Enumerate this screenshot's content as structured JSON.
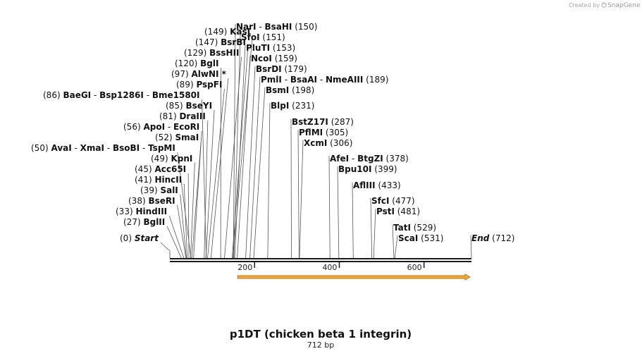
{
  "credit": {
    "prefix": "Created by",
    "brand": "SnapGene"
  },
  "map": {
    "name": "p1DT (chicken beta 1 integrin)",
    "length_label": "712 bp",
    "length_bp": 712,
    "ticks": [
      200,
      400,
      600
    ],
    "colors": {
      "backbone": "#1a1a1a",
      "feature_fill": "#f3a93a",
      "feature_stroke": "#c07a14",
      "cutline": "#555555"
    }
  },
  "chart_data": {
    "type": "restriction-map",
    "bp_range": [
      0,
      712
    ],
    "feature": {
      "start_bp": 160,
      "end_bp": 712,
      "direction": "forward"
    },
    "labels": [
      {
        "names": [
          "Start"
        ],
        "pos": "(0)",
        "bp": 0,
        "pos_side": "left",
        "italic": true
      },
      {
        "names": [
          "BglII"
        ],
        "pos": "(27)",
        "bp": 27,
        "pos_side": "left"
      },
      {
        "names": [
          "HindIII"
        ],
        "pos": "(33)",
        "bp": 33,
        "pos_side": "left"
      },
      {
        "names": [
          "BseRI"
        ],
        "pos": "(38)",
        "bp": 38,
        "pos_side": "left"
      },
      {
        "names": [
          "SalI"
        ],
        "pos": "(39)",
        "bp": 39,
        "pos_side": "left"
      },
      {
        "names": [
          "HincII"
        ],
        "pos": "(41)",
        "bp": 41,
        "pos_side": "left"
      },
      {
        "names": [
          "Acc65I"
        ],
        "pos": "(45)",
        "bp": 45,
        "pos_side": "left"
      },
      {
        "names": [
          "KpnI"
        ],
        "pos": "(49)",
        "bp": 49,
        "pos_side": "left"
      },
      {
        "names": [
          "AvaI",
          "XmaI",
          "BsoBI",
          "TspMI"
        ],
        "pos": "(50)",
        "bp": 50,
        "pos_side": "left"
      },
      {
        "names": [
          "SmaI"
        ],
        "pos": "(52)",
        "bp": 52,
        "pos_side": "left"
      },
      {
        "names": [
          "ApoI",
          "EcoRI"
        ],
        "pos": "(56)",
        "bp": 56,
        "pos_side": "left"
      },
      {
        "names": [
          "DraIII"
        ],
        "pos": "(81)",
        "bp": 81,
        "pos_side": "left"
      },
      {
        "names": [
          "BseYI"
        ],
        "pos": "(85)",
        "bp": 85,
        "pos_side": "left"
      },
      {
        "names": [
          "BaeGI",
          "Bsp1286I",
          "Bme1580I"
        ],
        "pos": "(86)",
        "bp": 86,
        "pos_side": "left"
      },
      {
        "names": [
          "PspFI"
        ],
        "pos": "(89)",
        "bp": 89,
        "pos_side": "left"
      },
      {
        "names": [
          "AlwNI *"
        ],
        "pos": "(97)",
        "bp": 97,
        "pos_side": "left"
      },
      {
        "names": [
          "BglI"
        ],
        "pos": "(120)",
        "bp": 120,
        "pos_side": "left"
      },
      {
        "names": [
          "BssHII"
        ],
        "pos": "(129)",
        "bp": 129,
        "pos_side": "left"
      },
      {
        "names": [
          "BsrBI"
        ],
        "pos": "(147)",
        "bp": 147,
        "pos_side": "left"
      },
      {
        "names": [
          "KasI"
        ],
        "pos": "(149)",
        "bp": 149,
        "pos_side": "left"
      },
      {
        "names": [
          "NarI",
          "BsaHI"
        ],
        "pos": "(150)",
        "bp": 150,
        "pos_side": "right"
      },
      {
        "names": [
          "SfoI"
        ],
        "pos": "(151)",
        "bp": 151,
        "pos_side": "right"
      },
      {
        "names": [
          "PluTI"
        ],
        "pos": "(153)",
        "bp": 153,
        "pos_side": "right"
      },
      {
        "names": [
          "NcoI"
        ],
        "pos": "(159)",
        "bp": 159,
        "pos_side": "right"
      },
      {
        "names": [
          "BsrDI"
        ],
        "pos": "(179)",
        "bp": 179,
        "pos_side": "right"
      },
      {
        "names": [
          "PmlI",
          "BsaAI",
          "NmeAIII"
        ],
        "pos": "(189)",
        "bp": 189,
        "pos_side": "right"
      },
      {
        "names": [
          "BsmI"
        ],
        "pos": "(198)",
        "bp": 198,
        "pos_side": "right"
      },
      {
        "names": [
          "BlpI"
        ],
        "pos": "(231)",
        "bp": 231,
        "pos_side": "right"
      },
      {
        "names": [
          "BstZ17I"
        ],
        "pos": "(287)",
        "bp": 287,
        "pos_side": "right"
      },
      {
        "names": [
          "PflMI"
        ],
        "pos": "(305)",
        "bp": 305,
        "pos_side": "right"
      },
      {
        "names": [
          "XcmI"
        ],
        "pos": "(306)",
        "bp": 306,
        "pos_side": "right"
      },
      {
        "names": [
          "AfeI",
          "BtgZI"
        ],
        "pos": "(378)",
        "bp": 378,
        "pos_side": "right"
      },
      {
        "names": [
          "Bpu10I"
        ],
        "pos": "(399)",
        "bp": 399,
        "pos_side": "right"
      },
      {
        "names": [
          "AflIII"
        ],
        "pos": "(433)",
        "bp": 433,
        "pos_side": "right"
      },
      {
        "names": [
          "SfcI"
        ],
        "pos": "(477)",
        "bp": 477,
        "pos_side": "right"
      },
      {
        "names": [
          "PstI"
        ],
        "pos": "(481)",
        "bp": 481,
        "pos_side": "right"
      },
      {
        "names": [
          "TatI"
        ],
        "pos": "(529)",
        "bp": 529,
        "pos_side": "right"
      },
      {
        "names": [
          "ScaI"
        ],
        "pos": "(531)",
        "bp": 531,
        "pos_side": "right"
      },
      {
        "names": [
          "End"
        ],
        "pos": "(712)",
        "bp": 712,
        "pos_side": "right",
        "italic": true
      }
    ]
  }
}
